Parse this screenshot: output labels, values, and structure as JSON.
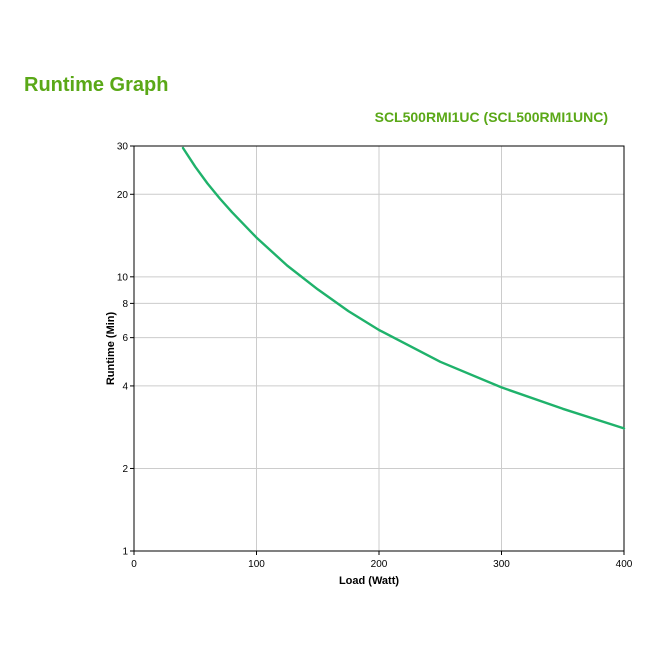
{
  "page": {
    "title": "Runtime Graph",
    "model": "SCL500RMI1UC (SCL500RMI1UNC)"
  },
  "colors": {
    "title": "#5aa817",
    "curve": "#1fb26b",
    "grid": "#cccccc",
    "axis": "#000000"
  },
  "chart_data": {
    "type": "line",
    "xlabel": "Load (Watt)",
    "ylabel": "Runtime (Min)",
    "xlim": [
      0,
      400
    ],
    "ylim": [
      1,
      30
    ],
    "yscale": "log",
    "grid": true,
    "xticks": [
      0,
      100,
      200,
      300,
      400
    ],
    "yticks": [
      1,
      2,
      4,
      6,
      8,
      10,
      20,
      30
    ],
    "series": [
      {
        "x": [
          40,
          50,
          60,
          70,
          80,
          100,
          125,
          150,
          175,
          200,
          250,
          300,
          350,
          400
        ],
        "y": [
          29.5,
          25.2,
          21.9,
          19.3,
          17.2,
          13.9,
          11.0,
          9.0,
          7.5,
          6.4,
          4.9,
          3.95,
          3.3,
          2.8
        ]
      }
    ]
  }
}
